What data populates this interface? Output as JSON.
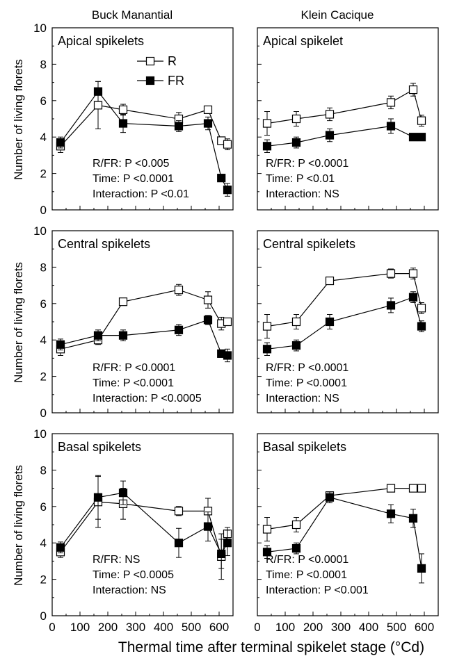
{
  "figure": {
    "columns": [
      "Buck Manantial",
      "Klein Cacique"
    ],
    "ylabel": "Number of living florets",
    "xlabel": "Thermal time after terminal spikelet stage (°Cd)"
  },
  "chart_data": [
    {
      "type": "line",
      "column": "Buck Manantial",
      "title": "Apical spikelets",
      "xlim": [
        0,
        650
      ],
      "ylim": [
        0,
        10
      ],
      "xticks": [
        0,
        100,
        200,
        300,
        400,
        500,
        600
      ],
      "yticks": [
        0,
        2,
        4,
        6,
        8,
        10
      ],
      "legend": [
        {
          "marker": "open-square",
          "label": "R"
        },
        {
          "marker": "filled-square",
          "label": "FR"
        }
      ],
      "stats": [
        "R/FR: P <0.005",
        "Time: P <0.0001",
        "Interaction: P <0.01"
      ],
      "series": [
        {
          "name": "R",
          "marker": "open",
          "x": [
            30,
            165,
            255,
            455,
            560,
            608,
            630
          ],
          "y": [
            3.5,
            5.75,
            5.5,
            5.0,
            5.5,
            3.8,
            3.6
          ],
          "err": [
            0.35,
            1.3,
            0.3,
            0.35,
            0.2,
            0.2,
            0.3
          ]
        },
        {
          "name": "FR",
          "marker": "filled",
          "x": [
            30,
            165,
            255,
            455,
            560,
            608,
            630
          ],
          "y": [
            3.7,
            6.5,
            4.75,
            4.6,
            4.75,
            1.75,
            1.1
          ],
          "err": [
            0.3,
            0.55,
            0.5,
            0.3,
            0.35,
            0.15,
            0.35
          ]
        }
      ]
    },
    {
      "type": "line",
      "column": "Klein Cacique",
      "title": "Apical spikelet",
      "xlim": [
        0,
        650
      ],
      "ylim": [
        0,
        10
      ],
      "xticks": [
        0,
        100,
        200,
        300,
        400,
        500,
        600
      ],
      "yticks": [
        0,
        2,
        4,
        6,
        8,
        10
      ],
      "stats": [
        "R/FR: P <0.0001",
        "Time: P <0.01",
        "Interaction: NS"
      ],
      "series": [
        {
          "name": "R",
          "marker": "open",
          "x": [
            35,
            140,
            260,
            480,
            560,
            590
          ],
          "y": [
            4.75,
            5.0,
            5.25,
            5.9,
            6.6,
            4.9
          ],
          "err": [
            0.65,
            0.4,
            0.35,
            0.35,
            0.35,
            0.3
          ]
        },
        {
          "name": "FR",
          "marker": "filled",
          "x": [
            35,
            140,
            260,
            480,
            560,
            590
          ],
          "y": [
            3.5,
            3.7,
            4.1,
            4.6,
            4.0,
            4.0
          ],
          "err": [
            0.35,
            0.3,
            0.35,
            0.4,
            0.2,
            0.2
          ]
        }
      ]
    },
    {
      "type": "line",
      "column": "Buck Manantial",
      "title": "Central spikelets",
      "xlim": [
        0,
        650
      ],
      "ylim": [
        0,
        10
      ],
      "xticks": [
        0,
        100,
        200,
        300,
        400,
        500,
        600
      ],
      "yticks": [
        0,
        2,
        4,
        6,
        8,
        10
      ],
      "stats": [
        "R/FR: P <0.0001",
        "Time: P <0.0001",
        "Interaction: P <0.0005"
      ],
      "series": [
        {
          "name": "R",
          "marker": "open",
          "x": [
            30,
            165,
            255,
            455,
            560,
            608,
            630
          ],
          "y": [
            3.5,
            4.0,
            6.1,
            6.75,
            6.2,
            4.9,
            5.0
          ],
          "err": [
            0.35,
            0.25,
            0.15,
            0.3,
            0.45,
            0.35,
            0.1
          ]
        },
        {
          "name": "FR",
          "marker": "filled",
          "x": [
            30,
            165,
            255,
            455,
            560,
            608,
            630
          ],
          "y": [
            3.75,
            4.25,
            4.25,
            4.55,
            5.1,
            3.25,
            3.15
          ],
          "err": [
            0.3,
            0.3,
            0.3,
            0.3,
            0.25,
            0.2,
            0.35
          ]
        }
      ]
    },
    {
      "type": "line",
      "column": "Klein Cacique",
      "title": "Central spikelets",
      "xlim": [
        0,
        650
      ],
      "ylim": [
        0,
        10
      ],
      "xticks": [
        0,
        100,
        200,
        300,
        400,
        500,
        600
      ],
      "yticks": [
        0,
        2,
        4,
        6,
        8,
        10
      ],
      "stats": [
        "R/FR: P <0.0001",
        "Time: P <0.0001",
        "Interaction: NS"
      ],
      "series": [
        {
          "name": "R",
          "marker": "open",
          "x": [
            35,
            140,
            260,
            480,
            560,
            590
          ],
          "y": [
            4.75,
            5.0,
            7.25,
            7.65,
            7.65,
            5.75
          ],
          "err": [
            0.65,
            0.4,
            0.2,
            0.25,
            0.3,
            0.3
          ]
        },
        {
          "name": "FR",
          "marker": "filled",
          "x": [
            35,
            140,
            260,
            480,
            560,
            590
          ],
          "y": [
            3.5,
            3.7,
            5.0,
            5.9,
            6.35,
            4.75
          ],
          "err": [
            0.35,
            0.3,
            0.4,
            0.4,
            0.3,
            0.3
          ]
        }
      ]
    },
    {
      "type": "line",
      "column": "Buck Manantial",
      "title": "Basal spikelets",
      "xlim": [
        0,
        650
      ],
      "ylim": [
        0,
        10
      ],
      "xticks": [
        0,
        100,
        200,
        300,
        400,
        500,
        600
      ],
      "yticks": [
        0,
        2,
        4,
        6,
        8,
        10
      ],
      "stats": [
        "R/FR: NS",
        "Time: P <0.0005",
        "Interaction: NS"
      ],
      "series": [
        {
          "name": "R",
          "marker": "open",
          "x": [
            30,
            165,
            255,
            455,
            560,
            608,
            630
          ],
          "y": [
            3.5,
            6.25,
            6.15,
            5.75,
            5.75,
            3.25,
            4.5
          ],
          "err": [
            0.3,
            1.4,
            0.85,
            0.25,
            0.7,
            1.25,
            0.35
          ]
        },
        {
          "name": "FR",
          "marker": "filled",
          "x": [
            30,
            165,
            255,
            455,
            560,
            608,
            630
          ],
          "y": [
            3.75,
            6.5,
            6.75,
            4.0,
            4.9,
            3.4,
            4.0
          ],
          "err": [
            0.3,
            1.2,
            0.65,
            0.8,
            0.8,
            0.8,
            0.7
          ]
        }
      ]
    },
    {
      "type": "line",
      "column": "Klein Cacique",
      "title": "Basal spikelets",
      "xlim": [
        0,
        650
      ],
      "ylim": [
        0,
        10
      ],
      "xticks": [
        0,
        100,
        200,
        300,
        400,
        500,
        600
      ],
      "yticks": [
        0,
        2,
        4,
        6,
        8,
        10
      ],
      "stats": [
        "R/FR: P <0.0001",
        "Time: P <0.0001",
        "Interaction: P <0.001"
      ],
      "series": [
        {
          "name": "R",
          "marker": "open",
          "x": [
            35,
            140,
            260,
            480,
            560,
            590
          ],
          "y": [
            4.75,
            5.0,
            6.6,
            7.0,
            7.0,
            7.0
          ],
          "err": [
            0.65,
            0.4,
            0.2,
            0.0,
            0.0,
            0.0
          ]
        },
        {
          "name": "FR",
          "marker": "filled",
          "x": [
            35,
            140,
            260,
            480,
            560,
            590
          ],
          "y": [
            3.5,
            3.7,
            6.5,
            5.6,
            5.35,
            2.6
          ],
          "err": [
            0.35,
            0.3,
            0.3,
            0.5,
            0.5,
            0.8
          ]
        }
      ]
    }
  ]
}
